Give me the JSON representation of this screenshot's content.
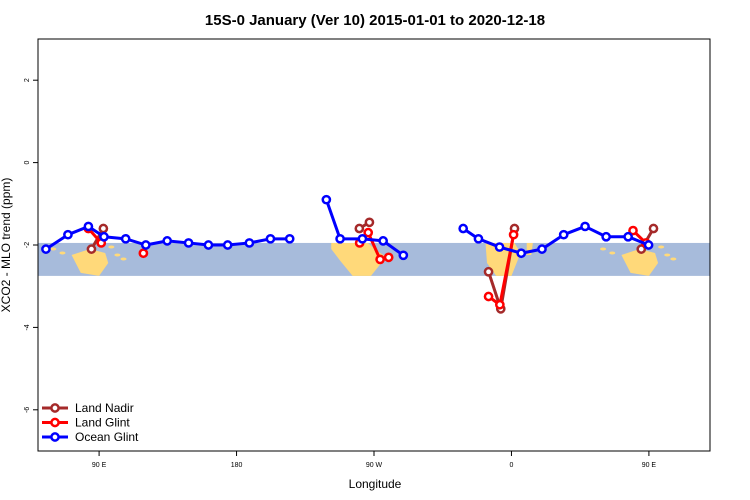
{
  "chart_data": {
    "type": "line",
    "title": "15S-0 January (Ver 10)   2015-01-01 to 2020-12-18",
    "xlabel": "Longitude",
    "ylabel": "XCO2 - MLO trend (ppm)",
    "xlim": [
      70,
      290
    ],
    "ylim": [
      -7,
      3
    ],
    "x_ticks": [
      {
        "value": 90,
        "label": "90 E"
      },
      {
        "value": 135,
        "label": "180"
      },
      {
        "value": 180,
        "label": "90 W"
      },
      {
        "value": 225,
        "label": "0"
      },
      {
        "value": 270,
        "label": "90 E"
      },
      {
        "value": 315,
        "label": "180"
      }
    ],
    "y_ticks": [
      {
        "value": 2,
        "label": "2"
      },
      {
        "value": 0,
        "label": "0"
      },
      {
        "value": -2,
        "label": "-2"
      },
      {
        "value": -4,
        "label": "-4"
      },
      {
        "value": -6,
        "label": "-6"
      }
    ],
    "band": {
      "y0": -2.75,
      "y1": -1.95,
      "color": "#a7bbdb"
    },
    "land_color": "#ffd97a",
    "legend_position": "bottom-left",
    "series": [
      {
        "name": "Land Nadir",
        "color": "#a52a2a",
        "segments": [
          [
            [
              87.5,
              -2.1
            ],
            [
              91.4,
              -1.6
            ]
          ],
          [
            [
              175.2,
              -1.6
            ],
            [
              178.5,
              -1.45
            ]
          ],
          [
            [
              217.5,
              -2.65
            ],
            [
              221.5,
              -3.55
            ],
            [
              226.0,
              -1.6
            ]
          ],
          [
            [
              267.5,
              -2.1
            ],
            [
              271.5,
              -1.6
            ]
          ]
        ]
      },
      {
        "name": "Land Glint",
        "color": "#ff0000",
        "segments": [
          [
            [
              86.5,
              -1.6
            ],
            [
              90.7,
              -1.95
            ]
          ],
          [
            [
              104.5,
              -2.2
            ]
          ],
          [
            [
              175.3,
              -1.95
            ],
            [
              178.1,
              -1.7
            ],
            [
              182.0,
              -2.35
            ],
            [
              184.8,
              -2.3
            ]
          ],
          [
            [
              217.5,
              -3.25
            ],
            [
              221.2,
              -3.45
            ],
            [
              225.7,
              -1.75
            ]
          ],
          [
            [
              264.8,
              -1.65
            ],
            [
              269.0,
              -1.95
            ]
          ]
        ]
      },
      {
        "name": "Ocean Glint",
        "color": "#0000ff",
        "segments": [
          [
            [
              72.6,
              -2.1
            ],
            [
              79.8,
              -1.75
            ],
            [
              86.5,
              -1.55
            ],
            [
              91.6,
              -1.8
            ],
            [
              98.7,
              -1.85
            ],
            [
              105.3,
              -2.0
            ],
            [
              112.3,
              -1.9
            ],
            [
              119.3,
              -1.95
            ],
            [
              125.8,
              -2.0
            ],
            [
              132.1,
              -2.0
            ],
            [
              139.2,
              -1.95
            ],
            [
              146.1,
              -1.85
            ],
            [
              152.4,
              -1.85
            ]
          ],
          [
            [
              164.4,
              -0.9
            ],
            [
              168.9,
              -1.85
            ],
            [
              176.2,
              -1.85
            ],
            [
              183.0,
              -1.9
            ],
            [
              189.6,
              -2.25
            ]
          ],
          [
            [
              209.2,
              -1.6
            ],
            [
              214.2,
              -1.85
            ],
            [
              221.1,
              -2.05
            ],
            [
              228.2,
              -2.2
            ],
            [
              235.0,
              -2.1
            ],
            [
              242.1,
              -1.75
            ],
            [
              249.1,
              -1.55
            ],
            [
              256.0,
              -1.8
            ],
            [
              263.2,
              -1.8
            ],
            [
              269.9,
              -2.0
            ]
          ]
        ]
      }
    ]
  }
}
